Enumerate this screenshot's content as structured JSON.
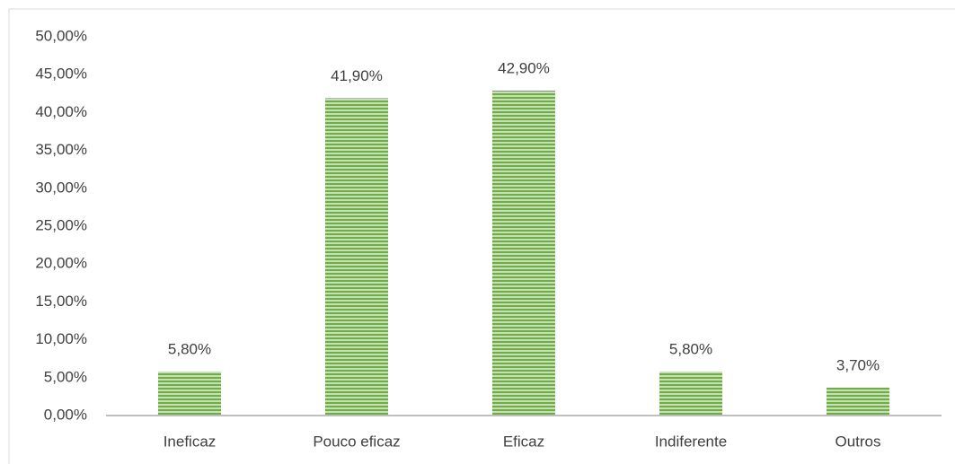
{
  "chart_data": {
    "type": "bar",
    "categories": [
      "Ineficaz",
      "Pouco eficaz",
      "Eficaz",
      "Indiferente",
      "Outros"
    ],
    "values": [
      5.8,
      41.9,
      42.9,
      5.8,
      3.7
    ],
    "value_labels": [
      "5,80%",
      "41,90%",
      "42,90%",
      "5,80%",
      "3,70%"
    ],
    "color": "#70ad47",
    "ylim": [
      0,
      50
    ],
    "yticks": [
      {
        "value": 0,
        "label": "0,00%"
      },
      {
        "value": 5,
        "label": "5,00%"
      },
      {
        "value": 10,
        "label": "10,00%"
      },
      {
        "value": 15,
        "label": "15,00%"
      },
      {
        "value": 20,
        "label": "20,00%"
      },
      {
        "value": 25,
        "label": "25,00%"
      },
      {
        "value": 30,
        "label": "30,00%"
      },
      {
        "value": 35,
        "label": "35,00%"
      },
      {
        "value": 40,
        "label": "40,00%"
      },
      {
        "value": 45,
        "label": "45,00%"
      },
      {
        "value": 50,
        "label": "50,00%"
      }
    ],
    "grid": false
  }
}
